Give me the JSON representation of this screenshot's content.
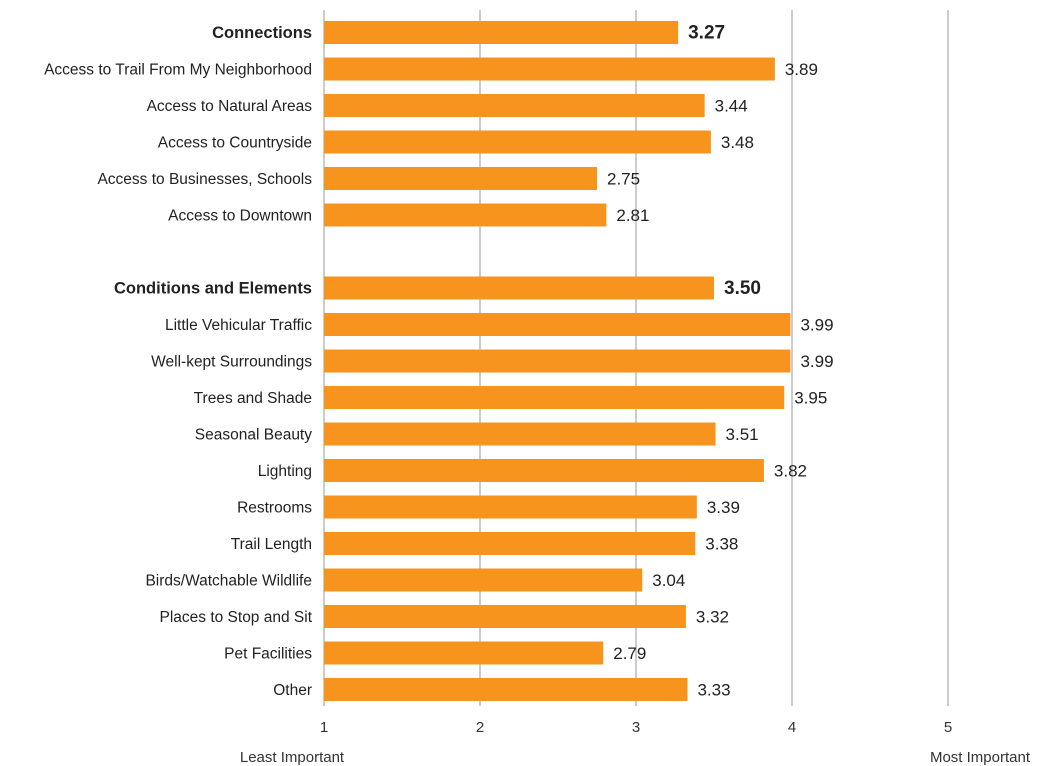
{
  "chart_data": {
    "type": "bar",
    "orientation": "horizontal",
    "title": "",
    "xlim": [
      1,
      5
    ],
    "x_ticks": [
      "1",
      "2",
      "3",
      "4",
      "5"
    ],
    "x_min_label": "Least Important",
    "x_max_label": "Most Important",
    "grid": "vertical",
    "bar_color": "#F7941D",
    "groups": [
      {
        "name": "Connections",
        "average": 3.27,
        "average_label": "3.27",
        "items": [
          {
            "label": "Access to Trail From My Neighborhood",
            "value": 3.89,
            "value_label": "3.89"
          },
          {
            "label": "Access to Natural Areas",
            "value": 3.44,
            "value_label": "3.44"
          },
          {
            "label": "Access to Countryside",
            "value": 3.48,
            "value_label": "3.48"
          },
          {
            "label": "Access to Businesses, Schools",
            "value": 2.75,
            "value_label": "2.75"
          },
          {
            "label": "Access to Downtown",
            "value": 2.81,
            "value_label": "2.81"
          }
        ]
      },
      {
        "name": "Conditions and Elements",
        "average": 3.5,
        "average_label": "3.50",
        "items": [
          {
            "label": "Little Vehicular Traffic",
            "value": 3.99,
            "value_label": "3.99"
          },
          {
            "label": "Well-kept Surroundings",
            "value": 3.99,
            "value_label": "3.99"
          },
          {
            "label": "Trees and Shade",
            "value": 3.95,
            "value_label": "3.95"
          },
          {
            "label": "Seasonal Beauty",
            "value": 3.51,
            "value_label": "3.51"
          },
          {
            "label": "Lighting",
            "value": 3.82,
            "value_label": "3.82"
          },
          {
            "label": "Restrooms",
            "value": 3.39,
            "value_label": "3.39"
          },
          {
            "label": "Trail Length",
            "value": 3.38,
            "value_label": "3.38"
          },
          {
            "label": "Birds/Watchable Wildlife",
            "value": 3.04,
            "value_label": "3.04"
          },
          {
            "label": "Places to Stop and Sit",
            "value": 3.32,
            "value_label": "3.32"
          },
          {
            "label": "Pet Facilities",
            "value": 2.79,
            "value_label": "2.79"
          },
          {
            "label": "Other",
            "value": 3.33,
            "value_label": "3.33"
          }
        ]
      }
    ]
  }
}
